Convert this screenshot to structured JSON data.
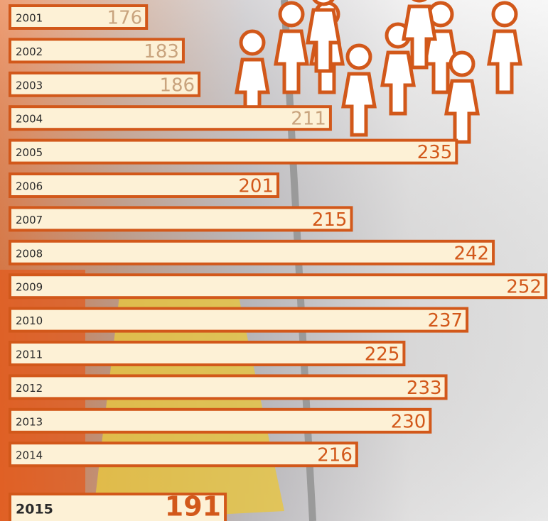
{
  "chart_data": {
    "type": "bar",
    "orientation": "horizontal",
    "categories": [
      "2001",
      "2002",
      "2003",
      "2004",
      "2005",
      "2006",
      "2007",
      "2008",
      "2009",
      "2010",
      "2011",
      "2012",
      "2013",
      "2014",
      "2015"
    ],
    "values": [
      176,
      183,
      186,
      211,
      235,
      201,
      215,
      242,
      252,
      237,
      225,
      233,
      230,
      216,
      191
    ],
    "color": "#fdf1d6",
    "edge_color": "#d2581a",
    "value_label_colors": [
      "#c9a47e",
      "#c9a47e",
      "#c9a47e",
      "#c9a47e",
      "#d2581a",
      "#d2581a",
      "#d2581a",
      "#d2581a",
      "#d2581a",
      "#d2581a",
      "#d2581a",
      "#d2581a",
      "#d2581a",
      "#d2581a",
      "#d2581a"
    ],
    "xlim": [
      150,
      252
    ]
  }
}
